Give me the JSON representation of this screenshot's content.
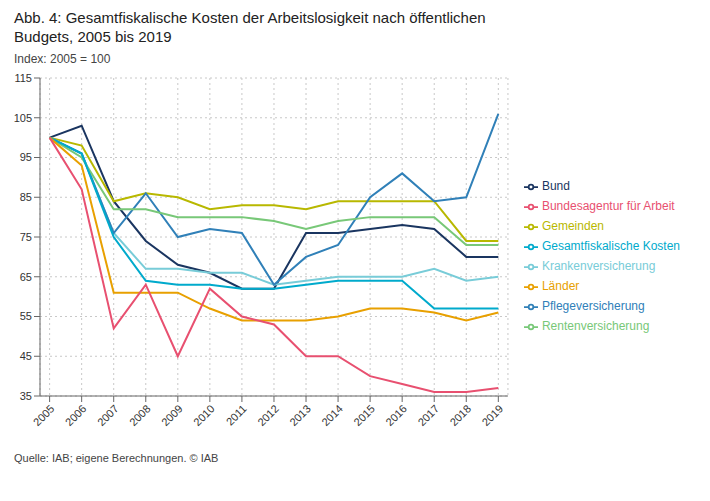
{
  "chart_data": {
    "type": "line",
    "title": "Abb. 4: Gesamtfiskalische Kosten der Arbeitslosigkeit nach öffentlichen\nBudgets, 2005 bis 2019",
    "subtitle": "Index: 2005 = 100",
    "annotations": [
      "Quelle: IAB; eigene Berechnungen. © IAB"
    ],
    "x": [
      2005,
      2006,
      2007,
      2008,
      2009,
      2010,
      2011,
      2012,
      2013,
      2014,
      2015,
      2016,
      2017,
      2018,
      2019
    ],
    "xlim": [
      2004.7,
      2019.3
    ],
    "xticks": [
      2005,
      2006,
      2007,
      2008,
      2009,
      2010,
      2011,
      2012,
      2013,
      2014,
      2015,
      2016,
      2017,
      2018,
      2019
    ],
    "ylim": [
      35,
      115
    ],
    "yticks": [
      35,
      45,
      55,
      65,
      75,
      85,
      95,
      105,
      115
    ],
    "grid": true,
    "legend": "right",
    "series": [
      {
        "name": "Bund",
        "color": "#1a3560",
        "values": [
          100,
          103,
          84,
          74,
          68,
          66,
          62,
          62,
          76,
          76,
          77,
          78,
          77,
          70,
          70
        ]
      },
      {
        "name": "Gemeinden",
        "color": "#b8b800",
        "values": [
          100,
          98,
          84,
          86,
          85,
          82,
          83,
          83,
          82,
          84,
          84,
          84,
          84,
          74,
          74
        ]
      },
      {
        "name": "Krankenversicherung",
        "color": "#78ccd8",
        "values": [
          100,
          96,
          76,
          67,
          67,
          66,
          66,
          63,
          64,
          65,
          65,
          65,
          67,
          64,
          65
        ]
      },
      {
        "name": "Pflegeversicherung",
        "color": "#3080b8",
        "values": [
          100,
          96,
          76,
          86,
          75,
          77,
          76,
          63,
          70,
          73,
          85,
          91,
          84,
          85,
          106
        ]
      },
      {
        "name": "Rentenversicherung",
        "color": "#78c878",
        "values": [
          100,
          95,
          82,
          82,
          80,
          80,
          80,
          79,
          77,
          79,
          80,
          80,
          80,
          73,
          73
        ]
      },
      {
        "name": "Gesamtfiskalische Kosten",
        "color": "#00aacc",
        "values": [
          100,
          96,
          75,
          64,
          63,
          63,
          62,
          62,
          63,
          64,
          64,
          64,
          57,
          57,
          57
        ]
      },
      {
        "name": "Länder",
        "color": "#e8a000",
        "values": [
          100,
          93,
          61,
          61,
          61,
          57,
          54,
          54,
          54,
          55,
          57,
          57,
          56,
          54,
          56
        ]
      },
      {
        "name": "Bundesagentur für Arbeit",
        "color": "#e85070",
        "values": [
          100,
          87,
          52,
          63,
          45,
          62,
          55,
          53,
          45,
          45,
          40,
          38,
          36,
          36,
          37
        ]
      }
    ]
  }
}
